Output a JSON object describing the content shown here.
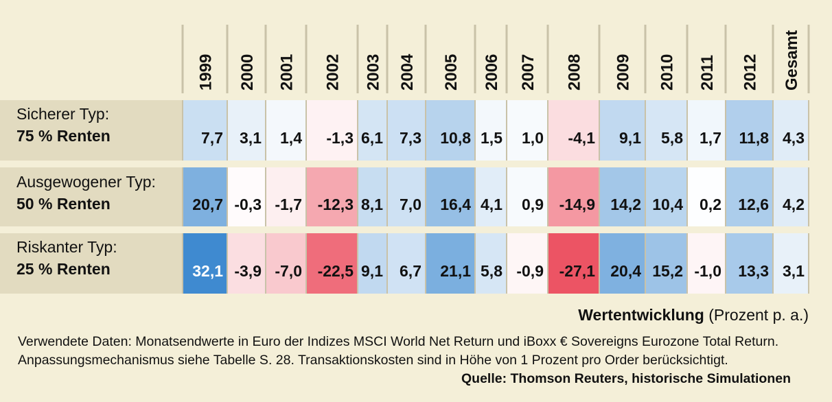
{
  "chart_data": {
    "type": "table",
    "title": "Wertentwicklung",
    "unit_label": "(Prozent p. a.)",
    "columns": [
      "1999",
      "2000",
      "2001",
      "2002",
      "2003",
      "2004",
      "2005",
      "2006",
      "2007",
      "2008",
      "2009",
      "2010",
      "2011",
      "2012",
      "Gesamt"
    ],
    "rows": [
      {
        "name": "Sicherer Typ:",
        "subname": "75 % Renten",
        "values": [
          7.7,
          3.1,
          1.4,
          -1.3,
          6.1,
          7.3,
          10.8,
          1.5,
          1.0,
          -4.1,
          9.1,
          5.8,
          1.7,
          11.8,
          4.3
        ],
        "labels": [
          "7,7",
          "3,1",
          "1,4",
          "-1,3",
          "6,1",
          "7,3",
          "10,8",
          "1,5",
          "1,0",
          "-4,1",
          "9,1",
          "5,8",
          "1,7",
          "11,8",
          "4,3"
        ]
      },
      {
        "name": "Ausgewogener Typ:",
        "subname": "50 % Renten",
        "values": [
          20.7,
          -0.3,
          -1.7,
          -12.3,
          8.1,
          7.0,
          16.4,
          4.1,
          0.9,
          -14.9,
          14.2,
          10.4,
          0.2,
          12.6,
          4.2
        ],
        "labels": [
          "20,7",
          "-0,3",
          "-1,7",
          "-12,3",
          "8,1",
          "7,0",
          "16,4",
          "4,1",
          "0,9",
          "-14,9",
          "14,2",
          "10,4",
          "0,2",
          "12,6",
          "4,2"
        ]
      },
      {
        "name": "Riskanter Typ:",
        "subname": "25 % Renten",
        "values": [
          32.1,
          -3.9,
          -7.0,
          -22.5,
          9.1,
          6.7,
          21.1,
          5.8,
          -0.9,
          -27.1,
          20.4,
          15.2,
          -1.0,
          13.3,
          3.1
        ],
        "labels": [
          "32,1",
          "-3,9",
          "-7,0",
          "-22,5",
          "9,1",
          "6,7",
          "21,1",
          "5,8",
          "-0,9",
          "-27,1",
          "20,4",
          "15,2",
          "-1,0",
          "13,3",
          "3,1"
        ]
      }
    ]
  },
  "caption": {
    "bold": "Wertentwicklung",
    "rest": "(Prozent p. a.)"
  },
  "footnote": {
    "text": "Verwendete Daten: Monatsendwerte in Euro der Indizes MSCI World Net Return und iBoxx € Sovereigns Eurozone Total Return. Anpassungsmechanismus siehe Tabelle S. 28. Transaktionskosten sind in Höhe von 1 Prozent pro Order berücksichtigt.",
    "source": "Quelle: Thomson Reuters, historische Simulationen"
  },
  "colors": {
    "background": "#f4efd8",
    "label_band": "#e2dbc0",
    "positive_max": "#3f8ad0",
    "negative_max": "#ec5464",
    "neutral": "#ffffff",
    "separator": "#c9c2a8"
  }
}
